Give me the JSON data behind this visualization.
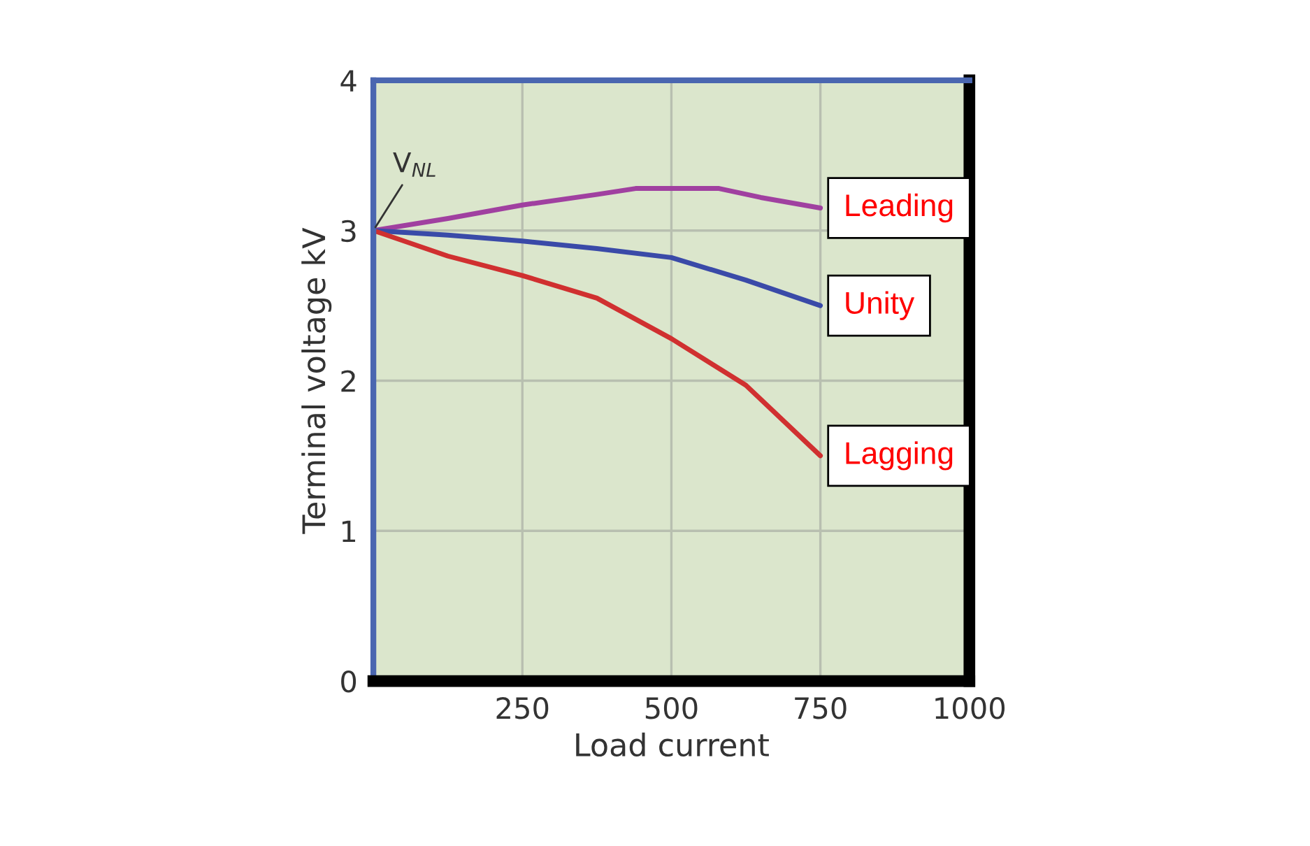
{
  "chart_data": {
    "type": "line",
    "xlabel": "Load current",
    "ylabel": "Terminal voltage kV",
    "xlim": [
      0,
      1000
    ],
    "xticks": [
      250,
      500,
      750,
      1000
    ],
    "ylim": [
      0,
      4
    ],
    "yticks": [
      0,
      1,
      2,
      3,
      4
    ],
    "grid": true,
    "annotations": [
      {
        "text": "V$_{NL}$",
        "x": 0,
        "y": 3
      }
    ],
    "series": [
      {
        "name": "Leading",
        "color": "#a040a0",
        "x": [
          0,
          125,
          250,
          375,
          440,
          500,
          580,
          650,
          750
        ],
        "values": [
          3.0,
          3.08,
          3.17,
          3.24,
          3.28,
          3.28,
          3.28,
          3.22,
          3.15
        ]
      },
      {
        "name": "Unity",
        "color": "#3a4aa8",
        "x": [
          0,
          125,
          250,
          375,
          500,
          625,
          750
        ],
        "values": [
          3.0,
          2.97,
          2.93,
          2.88,
          2.82,
          2.67,
          2.5
        ]
      },
      {
        "name": "Lagging",
        "color": "#d03030",
        "x": [
          0,
          125,
          250,
          375,
          500,
          625,
          750
        ],
        "values": [
          3.0,
          2.83,
          2.7,
          2.55,
          2.28,
          1.97,
          1.5
        ]
      }
    ]
  }
}
